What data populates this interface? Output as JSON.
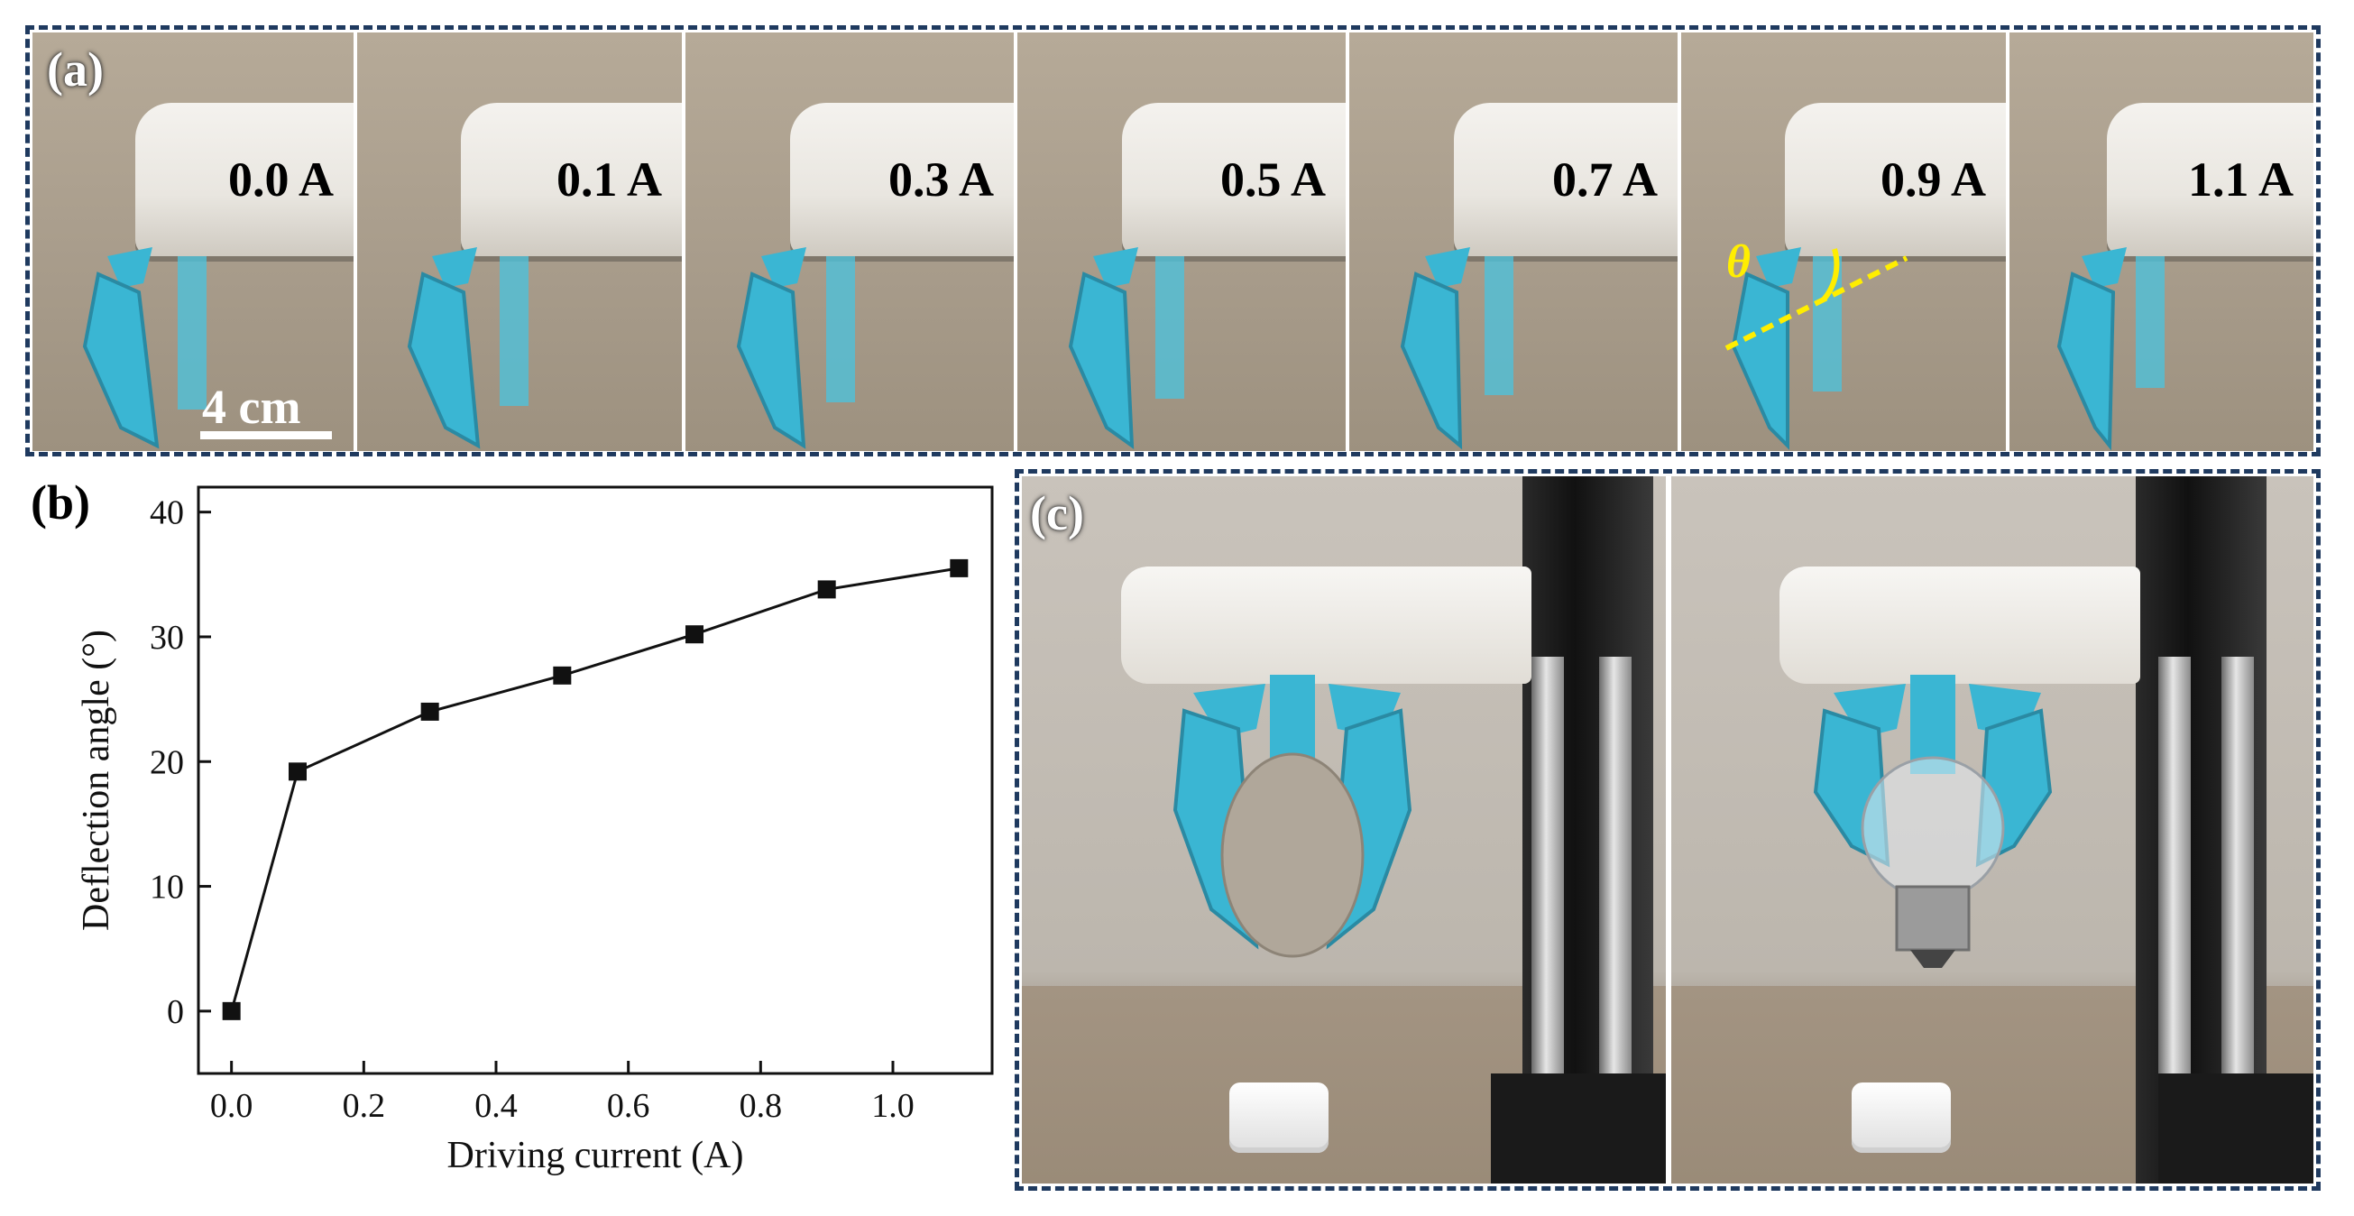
{
  "figure": {
    "panel_a": {
      "label": "(a)",
      "frames": [
        {
          "current": "0.0 A"
        },
        {
          "current": "0.1 A"
        },
        {
          "current": "0.3 A"
        },
        {
          "current": "0.5 A"
        },
        {
          "current": "0.7 A"
        },
        {
          "current": "0.9 A"
        },
        {
          "current": "1.1 A"
        }
      ],
      "scale_bar_label": "4 cm",
      "angle_symbol": "θ"
    },
    "panel_b": {
      "label": "(b)"
    },
    "panel_c": {
      "label": "(c)"
    },
    "colors": {
      "frame": "#1f3a5f",
      "gripper": "#3ab6d3",
      "theta": "#ffee00"
    }
  },
  "chart_data": {
    "type": "line",
    "x": [
      0.0,
      0.1,
      0.3,
      0.5,
      0.7,
      0.9,
      1.1
    ],
    "series": [
      {
        "values": [
          0,
          19.2,
          24.0,
          26.9,
          30.2,
          33.8,
          35.5
        ]
      }
    ],
    "xlabel": "Driving current (A)",
    "ylabel": "Deflection angle (°)",
    "xlim": [
      -0.05,
      1.15
    ],
    "ylim": [
      -5,
      42
    ],
    "xticks": [
      "0.0",
      "0.2",
      "0.4",
      "0.6",
      "0.8",
      "1.0"
    ],
    "xtick_values": [
      0.0,
      0.2,
      0.4,
      0.6,
      0.8,
      1.0
    ],
    "yticks": [
      "0",
      "10",
      "20",
      "30",
      "40"
    ],
    "ytick_values": [
      0,
      10,
      20,
      30,
      40
    ],
    "marker": "square",
    "grid": false
  }
}
